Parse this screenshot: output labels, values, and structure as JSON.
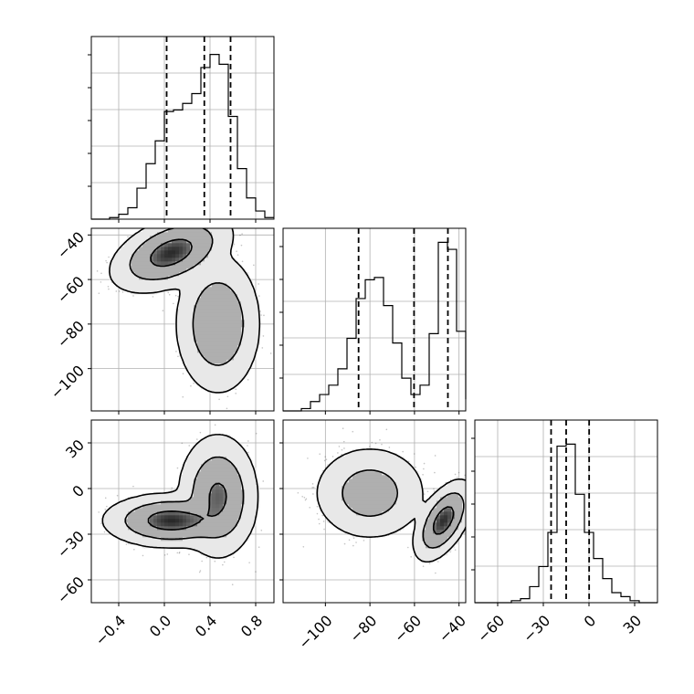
{
  "chart_data": {
    "type": "corner",
    "params": [
      {
        "id": "p0",
        "range": [
          -0.64,
          0.96
        ],
        "ticks": [
          -0.4,
          0.0,
          0.4,
          0.8
        ],
        "tick_labels": [
          "−0.4",
          "0.0",
          "0.4",
          "0.8"
        ],
        "quantiles": [
          0.02,
          0.35,
          0.58
        ]
      },
      {
        "id": "p1",
        "range": [
          -119,
          -37
        ],
        "ticks": [
          -100,
          -80,
          -60,
          -40
        ],
        "tick_labels": [
          "−100",
          "−80",
          "−60",
          "−40"
        ],
        "quantiles": [
          -85.1,
          -60.2,
          -45.0
        ]
      },
      {
        "id": "p2",
        "range": [
          -75,
          45
        ],
        "ticks": [
          -60,
          -30,
          0,
          30
        ],
        "tick_labels": [
          "−60",
          "−30",
          "0",
          "30"
        ],
        "quantiles": [
          -24.9,
          -15.0,
          0.1
        ]
      }
    ],
    "histograms": [
      {
        "param": "p0",
        "bin_edges": [
          -0.64,
          -0.56,
          -0.48,
          -0.4,
          -0.32,
          -0.24,
          -0.16,
          -0.08,
          0.0,
          0.08,
          0.16,
          0.24,
          0.32,
          0.4,
          0.48,
          0.56,
          0.64,
          0.72,
          0.8,
          0.88,
          0.96
        ],
        "counts": [
          0,
          0,
          1,
          3,
          7,
          19,
          34,
          48,
          66,
          67,
          71,
          77,
          93,
          101,
          95,
          63,
          31,
          13,
          5,
          1
        ],
        "ylim": [
          0,
          112
        ]
      },
      {
        "param": "p1",
        "bin_edges": [
          -119.0,
          -114.9,
          -110.8,
          -106.7,
          -102.6,
          -98.5,
          -94.4,
          -90.3,
          -86.2,
          -82.1,
          -78.0,
          -73.9,
          -69.8,
          -65.7,
          -61.6,
          -57.5,
          -53.4,
          -49.3,
          -45.2,
          -41.1,
          -37.0
        ],
        "counts": [
          0,
          0,
          1,
          4,
          7,
          11,
          18,
          31,
          48,
          56,
          57,
          45,
          29,
          14,
          7,
          11,
          33,
          72,
          69,
          34,
          5
        ],
        "ylim": [
          0,
          78
        ]
      },
      {
        "param": "p2",
        "bin_edges": [
          -75,
          -69,
          -63,
          -57,
          -51,
          -45,
          -39,
          -33,
          -27,
          -21,
          -15,
          -9,
          -3,
          3,
          9,
          15,
          21,
          27,
          33,
          39,
          45
        ],
        "counts": [
          0,
          0,
          0,
          0,
          1,
          2,
          8,
          18,
          35,
          78,
          79,
          54,
          35,
          22,
          12,
          5,
          3,
          1,
          0,
          0
        ],
        "ylim": [
          0,
          91
        ]
      }
    ],
    "joint_panels": [
      {
        "x": "p0",
        "y": "p1",
        "modes": [
          {
            "cx": 0.06,
            "cy": -48,
            "sx": 0.18,
            "sy": 6,
            "rho": 0.45,
            "weight": 0.55
          },
          {
            "cx": 0.47,
            "cy": -80,
            "sx": 0.13,
            "sy": 11,
            "rho": 0.0,
            "weight": 0.45
          }
        ]
      },
      {
        "x": "p0",
        "y": "p2",
        "modes": [
          {
            "cx": 0.06,
            "cy": -21,
            "sx": 0.2,
            "sy": 6,
            "rho": 0.0,
            "weight": 0.5
          },
          {
            "cx": 0.47,
            "cy": -5,
            "sx": 0.12,
            "sy": 14,
            "rho": 0.0,
            "weight": 0.5
          }
        ]
      },
      {
        "x": "p1",
        "y": "p2",
        "modes": [
          {
            "cx": -80,
            "cy": -3,
            "sx": 9,
            "sy": 11,
            "rho": 0.0,
            "weight": 0.5
          },
          {
            "cx": -47,
            "cy": -21,
            "sx": 4.5,
            "sy": 9,
            "rho": 0.55,
            "weight": 0.5
          }
        ]
      }
    ],
    "contour_levels": [
      0.393,
      0.865,
      0.989
    ],
    "grid": true,
    "title": "",
    "xlabel": "",
    "ylabel": ""
  }
}
